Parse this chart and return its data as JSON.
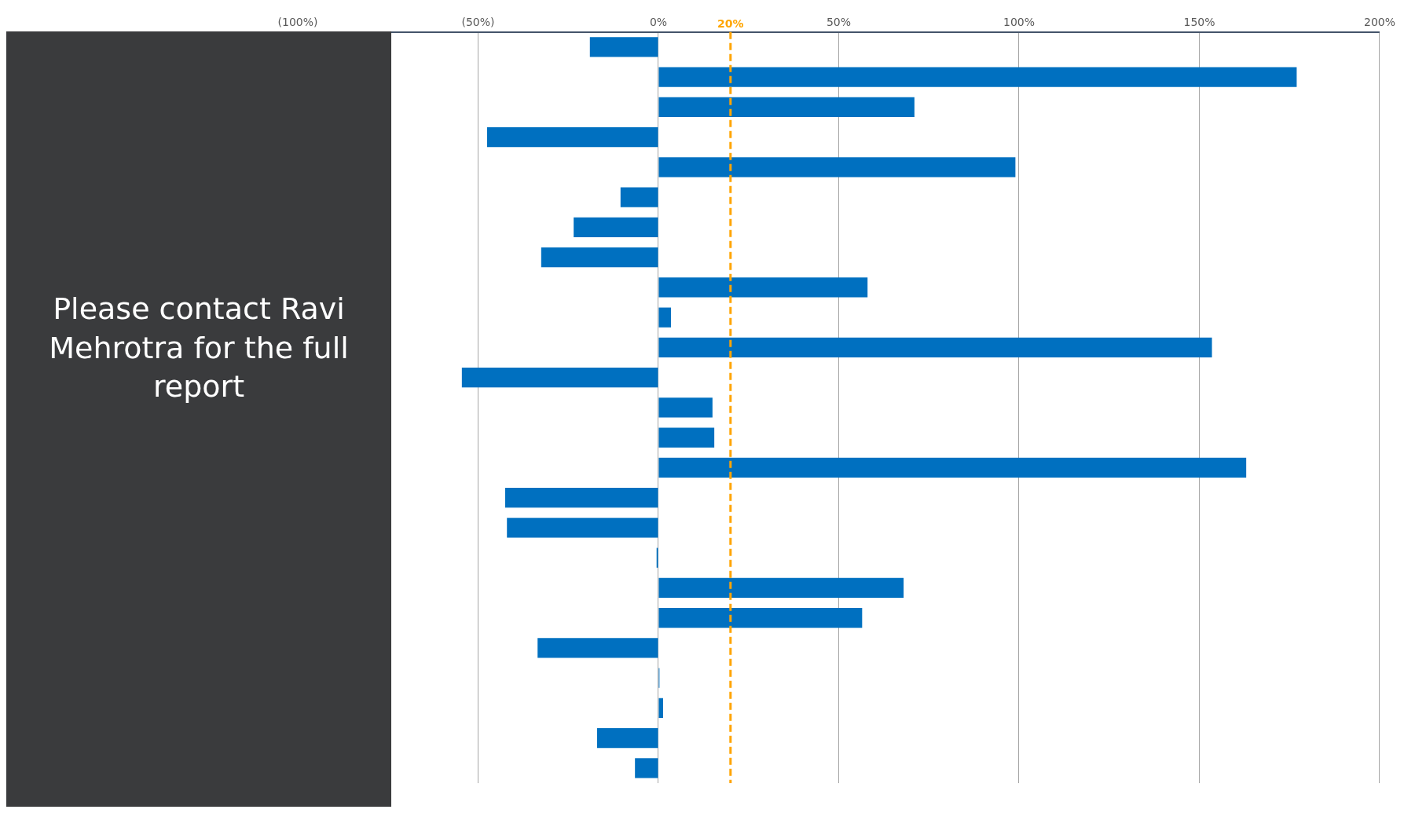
{
  "chart_data": {
    "type": "bar",
    "orientation": "horizontal",
    "categories": [
      null,
      null,
      null,
      null,
      null,
      null,
      null,
      null,
      null,
      null,
      null,
      null,
      null,
      null,
      null,
      null,
      null,
      null,
      null,
      null,
      null,
      null,
      null,
      null,
      null
    ],
    "values": [
      -19,
      177,
      71,
      -47.5,
      99,
      -10.5,
      -23.5,
      -32.5,
      58,
      3.5,
      153.5,
      -54.5,
      15,
      15.5,
      163,
      -42.5,
      -42,
      -0.5,
      68,
      56.5,
      -33.5,
      0.3,
      1.3,
      -17,
      -6.5
    ],
    "color": "#0070c0",
    "xlim": [
      -100,
      200
    ],
    "xticks": [
      {
        "value": -100,
        "label": "(100%)"
      },
      {
        "value": -50,
        "label": "(50%)"
      },
      {
        "value": 0,
        "label": "0%"
      },
      {
        "value": 50,
        "label": "50%"
      },
      {
        "value": 100,
        "label": "100%"
      },
      {
        "value": 150,
        "label": "150%"
      },
      {
        "value": 200,
        "label": "200%"
      }
    ],
    "grid": "x",
    "tick_labels": "x",
    "ref_lines": [
      {
        "axis": "x",
        "value": 20,
        "label": "20%",
        "color": "#ffa500",
        "line_style": "dashed"
      }
    ],
    "annotations": [
      "Please contact Ravi Mehrotra for the full report"
    ]
  }
}
